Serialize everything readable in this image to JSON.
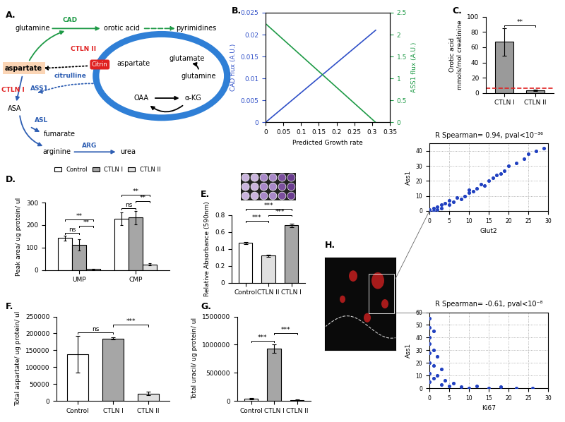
{
  "diagram": {
    "panel": "A.",
    "nodes": [
      {
        "label": "glutamine",
        "color": "#000000"
      },
      {
        "label": "CAD",
        "color": "#1e9a46"
      },
      {
        "label": "orotic acid",
        "color": "#000000"
      },
      {
        "label": "pyrimidines",
        "color": "#000000"
      },
      {
        "label": "aspartate",
        "color": "#000000"
      },
      {
        "label": "CTLN II",
        "color": "#e02020"
      },
      {
        "label": "Citrin",
        "color": "#ffffff"
      },
      {
        "label": "aspartate",
        "color": "#000000"
      },
      {
        "label": "glutamate",
        "color": "#000000"
      },
      {
        "label": "glutamine",
        "color": "#000000"
      },
      {
        "label": "OAA",
        "color": "#000000"
      },
      {
        "label": "α-KG",
        "color": "#000000"
      },
      {
        "label": "citrulline",
        "color": "#2f5fb3"
      },
      {
        "label": "CTLN I",
        "color": "#e02020"
      },
      {
        "label": "ASS1",
        "color": "#2f5fb3"
      },
      {
        "label": "ASA",
        "color": "#000000"
      },
      {
        "label": "ASL",
        "color": "#2f5fb3"
      },
      {
        "label": "fumarate",
        "color": "#000000"
      },
      {
        "label": "arginine",
        "color": "#000000"
      },
      {
        "label": "ARG",
        "color": "#2f5fb3"
      },
      {
        "label": "urea",
        "color": "#000000"
      }
    ]
  },
  "chart_data": [
    {
      "panel": "B.",
      "type": "line",
      "x": [
        0,
        0.31
      ],
      "xlabel": "Predicted Growth rate",
      "ylabel": "CAD flux (A.U.)",
      "y2label": "ASS1 flux (A.U.)",
      "xlim": [
        0,
        0.35
      ],
      "xticks": [
        0,
        0.05,
        0.1,
        0.15,
        0.2,
        0.25,
        0.3,
        0.35
      ],
      "ylim": [
        0,
        0.025
      ],
      "yticks": [
        0,
        0.005,
        0.01,
        0.015,
        0.02,
        0.025
      ],
      "y2lim": [
        0,
        2.5
      ],
      "y2ticks": [
        0,
        0.5,
        1,
        1.5,
        2,
        2.5
      ],
      "series": [
        {
          "values": [
            0,
            0.021
          ],
          "color": "#3050c8"
        },
        {
          "values": [
            2.25,
            0
          ],
          "color": "#1e9a46",
          "axis": "y2"
        }
      ]
    },
    {
      "panel": "C.",
      "type": "bar",
      "categories": [
        "CTLN I",
        "CTLN II"
      ],
      "values": [
        67,
        3
      ],
      "errors": [
        18,
        1
      ],
      "colors": [
        "#9a9a9a",
        "#9a9a9a"
      ],
      "ylabel": "Orotic acid\nmmols/mol creatinine",
      "ylim": [
        0,
        100
      ],
      "yticks": [
        0,
        20,
        40,
        60,
        80,
        100
      ],
      "reference_line": {
        "value": 6,
        "color": "#e02020",
        "line_style": "dashed"
      },
      "annotations": [
        {
          "text": "**",
          "between": [
            "CTLN I",
            "CTLN II"
          ]
        }
      ]
    },
    {
      "panel": "D.",
      "type": "grouped_bar",
      "categories": [
        "UMP",
        "CMP"
      ],
      "series": [
        {
          "name": "Control",
          "color": "#ffffff",
          "values": [
            142,
            228
          ],
          "errors": [
            12,
            28
          ]
        },
        {
          "name": "CTLN I",
          "color": "#a6a6a6",
          "values": [
            113,
            233
          ],
          "errors": [
            25,
            30
          ]
        },
        {
          "name": "CTLN II",
          "color": "#e0e0e0",
          "values": [
            4,
            25
          ],
          "errors": [
            2,
            5
          ]
        }
      ],
      "ylabel": "Peak area/ ug protein/ ul",
      "ylim": [
        0,
        300
      ],
      "yticks": [
        0,
        100,
        200,
        300
      ],
      "legend": "top",
      "annotations": [
        {
          "text": "ns",
          "category": "UMP",
          "between": [
            "Control",
            "CTLN I"
          ]
        },
        {
          "text": "**",
          "category": "UMP",
          "between": [
            "CTLN I",
            "CTLN II"
          ]
        },
        {
          "text": "**",
          "category": "UMP",
          "between": [
            "Control",
            "CTLN II"
          ]
        },
        {
          "text": "ns",
          "category": "CMP",
          "between": [
            "Control",
            "CTLN I"
          ]
        },
        {
          "text": "**",
          "category": "CMP",
          "between": [
            "CTLN I",
            "CTLN II"
          ]
        },
        {
          "text": "**",
          "category": "CMP",
          "between": [
            "Control",
            "CTLN II"
          ]
        }
      ]
    },
    {
      "panel": "E.",
      "type": "bar",
      "categories": [
        "Control",
        "CTLN II",
        "CTLN I"
      ],
      "values": [
        0.47,
        0.32,
        0.68
      ],
      "errors": [
        0.01,
        0.01,
        0.02
      ],
      "colors": [
        "#ffffff",
        "#e0e0e0",
        "#a6a6a6"
      ],
      "ylabel": "Relative Absorbance (590nm)",
      "ylim": [
        0,
        0.8
      ],
      "yticks": [
        0,
        0.2,
        0.4,
        0.6,
        0.8
      ],
      "annotations": [
        {
          "text": "***",
          "between": [
            "Control",
            "CTLN II"
          ]
        },
        {
          "text": "***",
          "between": [
            "CTLN II",
            "CTLN I"
          ]
        },
        {
          "text": "***",
          "between": [
            "Control",
            "CTLN I"
          ]
        }
      ]
    },
    {
      "panel": "F.",
      "type": "bar",
      "categories": [
        "Control",
        "CTLN I",
        "CTLN II"
      ],
      "values": [
        138000,
        185000,
        22000
      ],
      "errors": [
        55000,
        3000,
        5000
      ],
      "colors": [
        "#ffffff",
        "#a6a6a6",
        "#e0e0e0"
      ],
      "ylabel": "Total aspartate/ ug protein/ ul",
      "ylim": [
        0,
        250000
      ],
      "yticks": [
        0,
        50000,
        100000,
        150000,
        200000,
        250000
      ],
      "annotations": [
        {
          "text": "ns",
          "between": [
            "Control",
            "CTLN I"
          ]
        },
        {
          "text": "***",
          "between": [
            "CTLN I",
            "CTLN II"
          ]
        }
      ]
    },
    {
      "panel": "G.",
      "type": "bar",
      "categories": [
        "Control",
        "CTLN I",
        "CTLN II"
      ],
      "values": [
        40000,
        930000,
        20000
      ],
      "errors": [
        8000,
        80000,
        5000
      ],
      "colors": [
        "#ffffff",
        "#a6a6a6",
        "#e0e0e0"
      ],
      "ylabel": "Total uracil/ ug protein/ ul",
      "ylim": [
        0,
        1500000
      ],
      "yticks": [
        0,
        500000,
        1000000,
        1500000
      ],
      "annotations": [
        {
          "text": "***",
          "between": [
            "Control",
            "CTLN I"
          ]
        },
        {
          "text": "***",
          "between": [
            "CTLN I",
            "CTLN II"
          ]
        }
      ]
    },
    {
      "panel": "H.",
      "type": "scatter",
      "title": "R Spearman= 0.94, pval<10⁻³⁶",
      "xlabel": "Glut2",
      "ylabel": "Ass1",
      "color": "#2040c0",
      "grid": true,
      "x": [
        0,
        0,
        1,
        1,
        2,
        2,
        3,
        3,
        4,
        5,
        5,
        6,
        7,
        8,
        9,
        10,
        10,
        11,
        12,
        13,
        14,
        15,
        16,
        17,
        18,
        19,
        20,
        22,
        24,
        25,
        27,
        29
      ],
      "values": [
        0,
        1,
        0,
        2,
        1,
        3,
        2,
        4,
        5,
        4,
        7,
        6,
        9,
        8,
        10,
        12,
        14,
        13,
        15,
        18,
        17,
        20,
        22,
        24,
        25,
        27,
        30,
        32,
        35,
        38,
        40,
        42
      ],
      "xlim": [
        0,
        30
      ],
      "xticks": [
        0,
        5,
        10,
        15,
        20,
        25,
        30
      ],
      "ylim": [
        0,
        45
      ],
      "yticks": [
        0,
        10,
        20,
        30,
        40
      ]
    },
    {
      "type": "scatter",
      "title": "R Spearman= -0.61, pval<10⁻⁸",
      "xlabel": "Ki67",
      "ylabel": "Ass1",
      "color": "#2040c0",
      "grid": true,
      "x": [
        0,
        0,
        0,
        0,
        0,
        0,
        0,
        0,
        1,
        1,
        1,
        1,
        2,
        2,
        3,
        3,
        4,
        5,
        6,
        8,
        10,
        12,
        15,
        18,
        22,
        26
      ],
      "values": [
        55,
        48,
        40,
        35,
        28,
        20,
        12,
        5,
        45,
        30,
        18,
        8,
        25,
        10,
        15,
        3,
        6,
        2,
        4,
        1,
        0,
        2,
        0,
        1,
        0,
        0
      ],
      "xlim": [
        0,
        30
      ],
      "xticks": [
        0,
        5,
        10,
        15,
        20,
        25,
        30
      ],
      "ylim": [
        0,
        60
      ],
      "yticks": [
        0,
        10,
        20,
        30,
        40,
        50,
        60
      ]
    }
  ]
}
